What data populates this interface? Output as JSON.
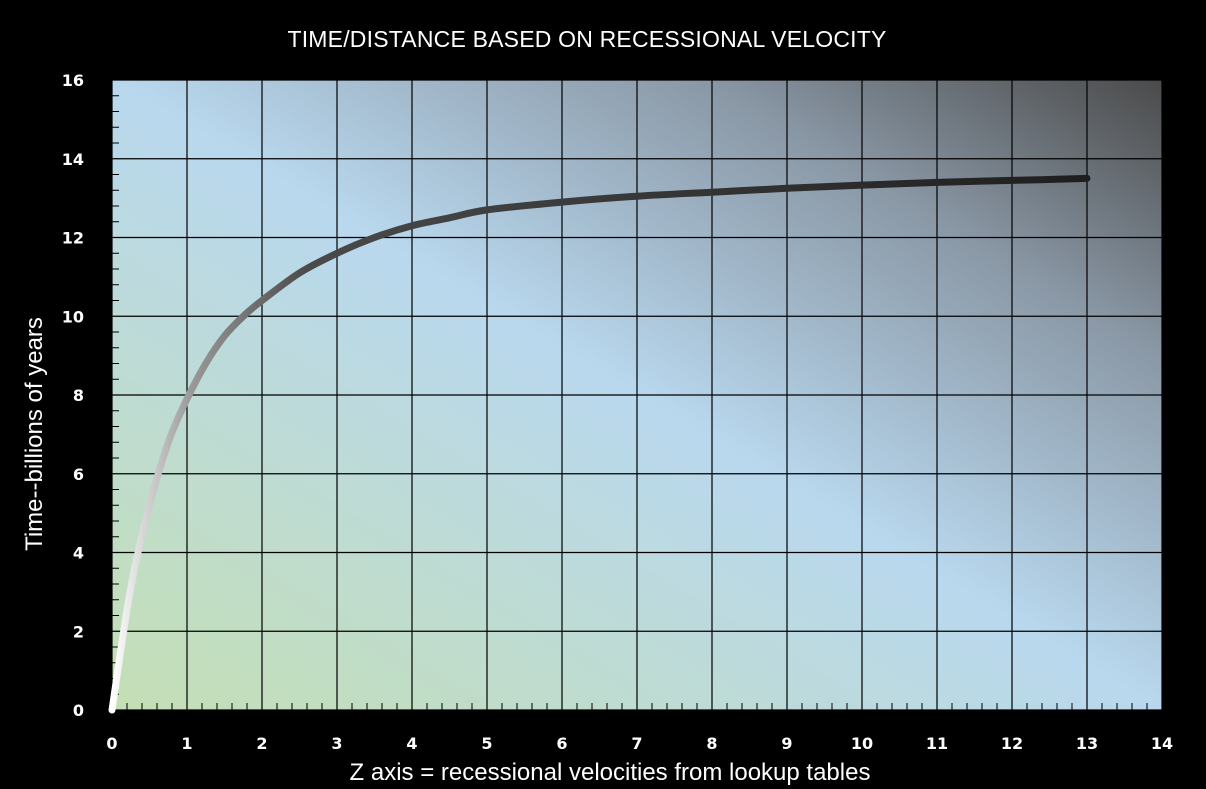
{
  "colors": {
    "background": "#000000",
    "plot_gradient": [
      "#c4dfb4",
      "#b9d8ee",
      "#8a98a6",
      "#4a4a4a"
    ],
    "grid": "#000000",
    "text": "#ffffff",
    "curve_gradient": [
      "#ffffff",
      "#9a9a9a",
      "#1e1e1e"
    ]
  },
  "chart_data": {
    "type": "line",
    "title": "TIME/DISTANCE BASED ON RECESSIONAL VELOCITY",
    "xlabel": "Z axis = recessional velocities from lookup tables",
    "ylabel": "Time--billions of years",
    "xlim": [
      0,
      14
    ],
    "ylim": [
      0,
      16
    ],
    "xticks": [
      0,
      1,
      2,
      3,
      4,
      5,
      6,
      7,
      8,
      9,
      10,
      11,
      12,
      13,
      14
    ],
    "yticks": [
      0,
      2,
      4,
      6,
      8,
      10,
      12,
      14,
      16
    ],
    "grid": true,
    "legend": "none",
    "series": [
      {
        "x": [
          0,
          0.25,
          0.5,
          0.75,
          1.0,
          1.25,
          1.5,
          1.75,
          2.0,
          2.5,
          3.0,
          3.5,
          4.0,
          4.5,
          5.0,
          6.0,
          7.0,
          8.0,
          9.0,
          10.0,
          11.0,
          12.0,
          13.0
        ],
        "y": [
          0,
          3.1,
          5.2,
          6.8,
          7.9,
          8.8,
          9.5,
          10.0,
          10.4,
          11.1,
          11.6,
          12.0,
          12.3,
          12.5,
          12.7,
          12.9,
          13.05,
          13.15,
          13.25,
          13.33,
          13.4,
          13.45,
          13.5
        ]
      }
    ]
  }
}
